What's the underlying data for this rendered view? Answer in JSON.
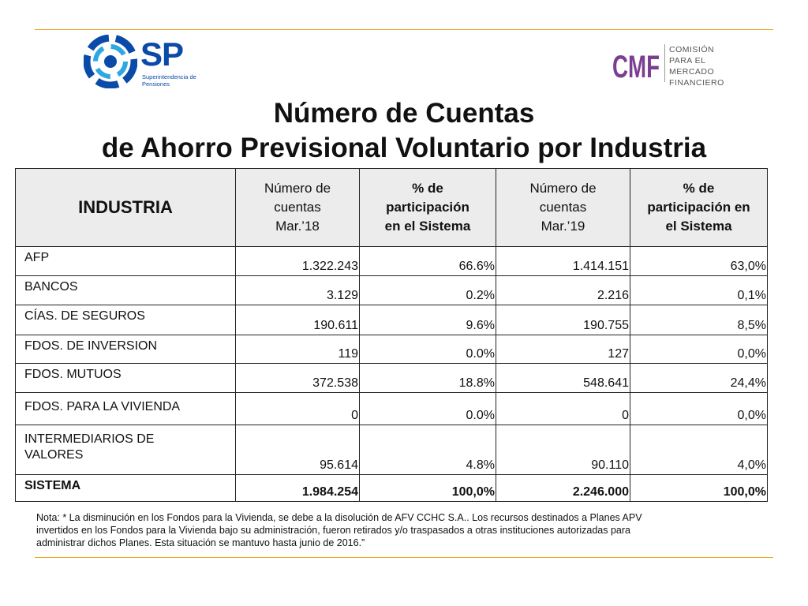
{
  "colors": {
    "accent_rule": "#f2a31e",
    "sp_blue": "#0a4aa8",
    "cmf_purple": "#7b3f92"
  },
  "logo_sp": {
    "letters": "SP",
    "subtitle": "Superintendencia de Pensiones"
  },
  "logo_cmf": {
    "letters": "CMF",
    "line1": "COMISIÓN",
    "line2": "PARA EL MERCADO",
    "line3": "FINANCIERO"
  },
  "title": {
    "line1": "Número de Cuentas",
    "line2": "de Ahorro Previsional Voluntario por Industria"
  },
  "table": {
    "headers": {
      "industria": "INDUSTRIA",
      "n18_l1": "Número de",
      "n18_l2": "cuentas",
      "n18_l3": "Mar.’18",
      "p18_l1": "% de",
      "p18_l2": "participación",
      "p18_l3": "en el Sistema",
      "n19_l1": "Número de",
      "n19_l2": "cuentas",
      "n19_l3": "Mar.’19",
      "p19_l1": "% de",
      "p19_l2": "participación en",
      "p19_l3": "el Sistema"
    },
    "rows": [
      {
        "label": "AFP",
        "n18": "1.322.243",
        "p18": "66.6%",
        "n19": "1.414.151",
        "p19": "63,0%"
      },
      {
        "label": "BANCOS",
        "n18": "3.129",
        "p18": "0.2%",
        "n19": "2.216",
        "p19": "0,1%"
      },
      {
        "label": "CÍAS. DE SEGUROS",
        "n18": "190.611",
        "p18": "9.6%",
        "n19": "190.755",
        "p19": "8,5%"
      },
      {
        "label": "FDOS. DE INVERSION",
        "n18": "119",
        "p18": "0.0%",
        "n19": "127",
        "p19": "0,0%"
      },
      {
        "label": "FDOS. MUTUOS",
        "n18": "372.538",
        "p18": "18.8%",
        "n19": "548.641",
        "p19": "24,4%"
      },
      {
        "label": "FDOS. PARA LA VIVIENDA",
        "n18": "0",
        "p18": "0.0%",
        "n19": "0",
        "p19": "0,0%"
      },
      {
        "label_l1": "INTERMEDIARIOS DE",
        "label_l2": "VALORES",
        "n18": "95.614",
        "p18": "4.8%",
        "n19": "90.110",
        "p19": "4,0%"
      },
      {
        "label": "SISTEMA",
        "n18": "1.984.254",
        "p18": "100,0%",
        "n19": "2.246.000",
        "p19": "100,0%"
      }
    ]
  },
  "note": {
    "line1": "Nota: * La disminución en los Fondos para la Vivienda, se debe a la disolución de AFV CCHC S.A.. Los recursos destinados a Planes APV",
    "line2": "invertidos en los Fondos para la Vivienda bajo su administración, fueron retirados y/o traspasados a otras instituciones autorizadas para",
    "line3": "administrar dichos Planes. Esta situación se mantuvo hasta junio de 2016.”"
  }
}
